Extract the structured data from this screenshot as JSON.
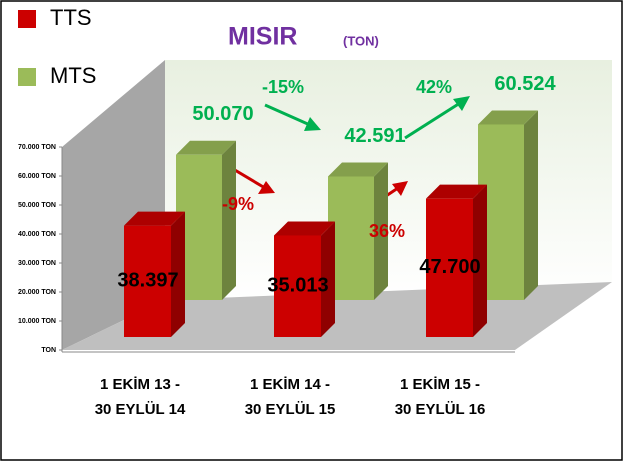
{
  "chart_data": {
    "type": "bar3d",
    "title": "MISIR",
    "subtitle": "(TON)",
    "categories": [
      [
        "1 EKİM 13 -",
        "30 EYLÜL 14"
      ],
      [
        "1 EKİM 14 -",
        "30 EYLÜL 15"
      ],
      [
        "1 EKİM 15 -",
        "30 EYLÜL 16"
      ]
    ],
    "series": [
      {
        "name": "TTS",
        "color": "#cc0000",
        "values": [
          38397,
          35013,
          47700
        ],
        "value_labels": [
          "38.397",
          "35.013",
          "47.700"
        ],
        "label_color": "#000000"
      },
      {
        "name": "MTS",
        "color": "#9bbb59",
        "values": [
          50070,
          42591,
          60524
        ],
        "value_labels": [
          "50.070",
          "42.591",
          "60.524"
        ],
        "label_color": "#00b050"
      }
    ],
    "ylim": [
      0,
      70000
    ],
    "yticks": [
      {
        "value": 0,
        "label": "TON"
      },
      {
        "value": 10000,
        "label": "10.000 TON"
      },
      {
        "value": 20000,
        "label": "20.000 TON"
      },
      {
        "value": 30000,
        "label": "30.000 TON"
      },
      {
        "value": 40000,
        "label": "40.000 TON"
      },
      {
        "value": 50000,
        "label": "50.000 TON"
      },
      {
        "value": 60000,
        "label": "60.000 TON"
      },
      {
        "value": 70000,
        "label": "70.000 TON"
      }
    ],
    "annotations": [
      {
        "text": "-9%",
        "color": "#cc0000"
      },
      {
        "text": "36%",
        "color": "#cc0000"
      },
      {
        "text": "-15%",
        "color": "#00b050"
      },
      {
        "text": "42%",
        "color": "#00b050"
      }
    ],
    "legend": "top-left"
  }
}
